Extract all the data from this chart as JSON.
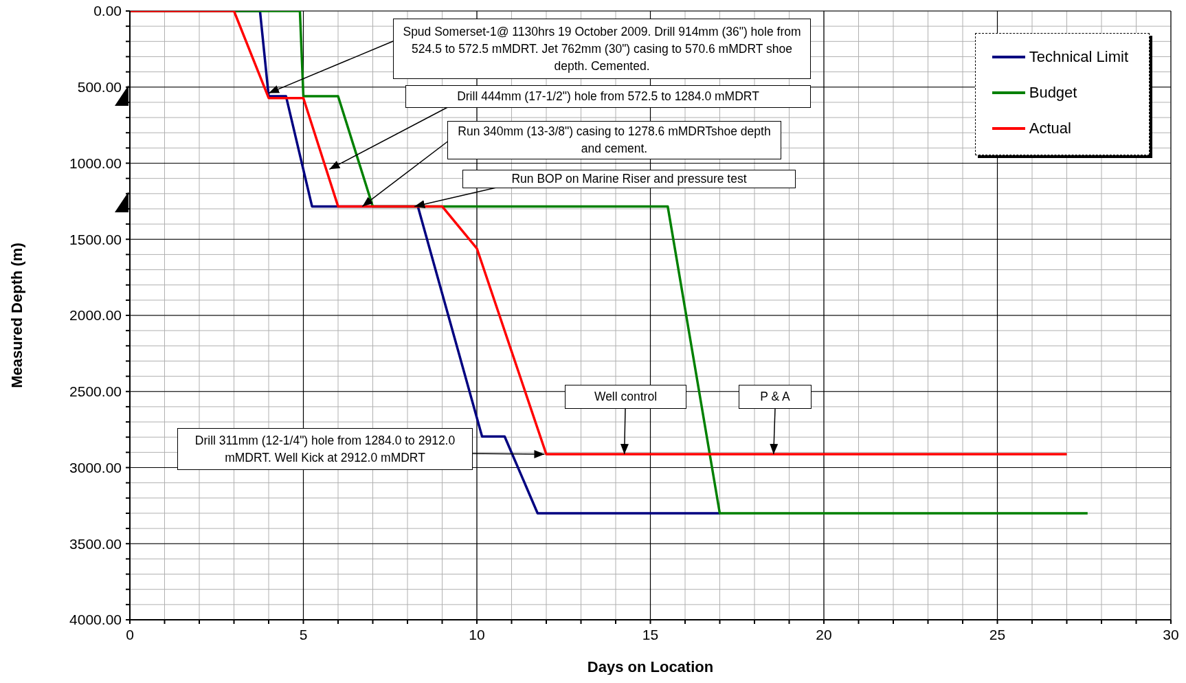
{
  "chart_data": {
    "type": "line",
    "xlabel": "Days on Location",
    "ylabel": "Measured Depth (m)",
    "xlim": [
      0,
      30
    ],
    "xticks": [
      0,
      {
        "value": 1,
        "label": null
      },
      {
        "value": 2,
        "label": null
      },
      {
        "value": 3,
        "label": null
      },
      {
        "value": 4,
        "label": null
      },
      5,
      {
        "value": 6,
        "label": null
      },
      {
        "value": 7,
        "label": null
      },
      {
        "value": 8,
        "label": null
      },
      {
        "value": 9,
        "label": null
      },
      10,
      {
        "value": 11,
        "label": null
      },
      {
        "value": 12,
        "label": null
      },
      {
        "value": 13,
        "label": null
      },
      {
        "value": 14,
        "label": null
      },
      15,
      {
        "value": 16,
        "label": null
      },
      {
        "value": 17,
        "label": null
      },
      {
        "value": 18,
        "label": null
      },
      {
        "value": 19,
        "label": null
      },
      20,
      {
        "value": 21,
        "label": null
      },
      {
        "value": 22,
        "label": null
      },
      {
        "value": 23,
        "label": null
      },
      {
        "value": 24,
        "label": null
      },
      25,
      {
        "value": 26,
        "label": null
      },
      {
        "value": 27,
        "label": null
      },
      {
        "value": 28,
        "label": null
      },
      {
        "value": 29,
        "label": null
      },
      30
    ],
    "ylim": [
      4000,
      0
    ],
    "yticks": [
      {
        "value": 0,
        "label": "0.00"
      },
      {
        "value": 100,
        "label": null
      },
      {
        "value": 200,
        "label": null
      },
      {
        "value": 300,
        "label": null
      },
      {
        "value": 400,
        "label": null
      },
      {
        "value": 500,
        "label": "500.00"
      },
      {
        "value": 600,
        "label": null
      },
      {
        "value": 700,
        "label": null
      },
      {
        "value": 800,
        "label": null
      },
      {
        "value": 900,
        "label": null
      },
      {
        "value": 1000,
        "label": "1000.00"
      },
      {
        "value": 1100,
        "label": null
      },
      {
        "value": 1200,
        "label": null
      },
      {
        "value": 1300,
        "label": null
      },
      {
        "value": 1400,
        "label": null
      },
      {
        "value": 1500,
        "label": "1500.00"
      },
      {
        "value": 1600,
        "label": null
      },
      {
        "value": 1700,
        "label": null
      },
      {
        "value": 1800,
        "label": null
      },
      {
        "value": 1900,
        "label": null
      },
      {
        "value": 2000,
        "label": "2000.00"
      },
      {
        "value": 2100,
        "label": null
      },
      {
        "value": 2200,
        "label": null
      },
      {
        "value": 2300,
        "label": null
      },
      {
        "value": 2400,
        "label": null
      },
      {
        "value": 2500,
        "label": "2500.00"
      },
      {
        "value": 2600,
        "label": null
      },
      {
        "value": 2700,
        "label": null
      },
      {
        "value": 2800,
        "label": null
      },
      {
        "value": 2900,
        "label": null
      },
      {
        "value": 3000,
        "label": "3000.00"
      },
      {
        "value": 3100,
        "label": null
      },
      {
        "value": 3200,
        "label": null
      },
      {
        "value": 3300,
        "label": null
      },
      {
        "value": 3400,
        "label": null
      },
      {
        "value": 3500,
        "label": "3500.00"
      },
      {
        "value": 3600,
        "label": null
      },
      {
        "value": 3700,
        "label": null
      },
      {
        "value": 3800,
        "label": null
      },
      {
        "value": 3900,
        "label": null
      },
      {
        "value": 4000,
        "label": "4000.00"
      }
    ],
    "grid": true,
    "legend": "top right",
    "marker": "none",
    "line_style": "solid",
    "series": [
      {
        "name": "Technical Limit",
        "color": "#000080",
        "x": [
          0,
          3.75,
          4,
          4.5,
          5.25,
          8.3,
          10.15,
          10.8,
          11.75,
          17
        ],
        "values": [
          0,
          0,
          560,
          560,
          1284,
          1284,
          2796,
          2796,
          3300,
          3300
        ]
      },
      {
        "name": "Budget",
        "color": "#008000",
        "x": [
          0,
          4.9,
          5,
          6,
          7,
          15.5,
          17,
          27.6
        ],
        "values": [
          0,
          0,
          560,
          560,
          1284,
          1284,
          3300,
          3300
        ]
      },
      {
        "name": "Actual",
        "color": "#ff0000",
        "x": [
          0,
          3,
          4,
          5,
          6,
          9,
          10,
          11.05,
          12,
          27
        ],
        "values": [
          0,
          0,
          572,
          572,
          1284,
          1284,
          1560,
          2270,
          2912,
          2912
        ]
      }
    ],
    "annotations": [
      {
        "text": "Spud Somerset-1@ 1130hrs 19 October 2009. Drill 914mm (36\") hole from 524.5 to 572.5 mMDRT. Jet 762mm (30\") casing to 570.6 mMDRT shoe depth. Cemented.",
        "x": 4,
        "y": 540
      },
      {
        "text": "Drill 444mm (17-1/2\") hole from 572.5 to 1284.0 mMDRT",
        "x": 5.75,
        "y": 1040
      },
      {
        "text": "Run 340mm (13-3/8\") casing to 1278.6 mMDRTshoe depth and cement.",
        "x": 6.7,
        "y": 1284
      },
      {
        "text": "Run BOP on Marine Riser and pressure test",
        "x": 8.2,
        "y": 1284
      },
      {
        "text": "Well control",
        "x": 14.25,
        "y": 2912
      },
      {
        "text": "P & A",
        "x": 18.55,
        "y": 2912
      },
      {
        "text": "Drill 311mm (12-1/4\") hole from 1284.0 to 2912.0 mMDRT. Well Kick at 2912.0 mMDRT",
        "x": 11.95,
        "y": 2912
      }
    ]
  }
}
